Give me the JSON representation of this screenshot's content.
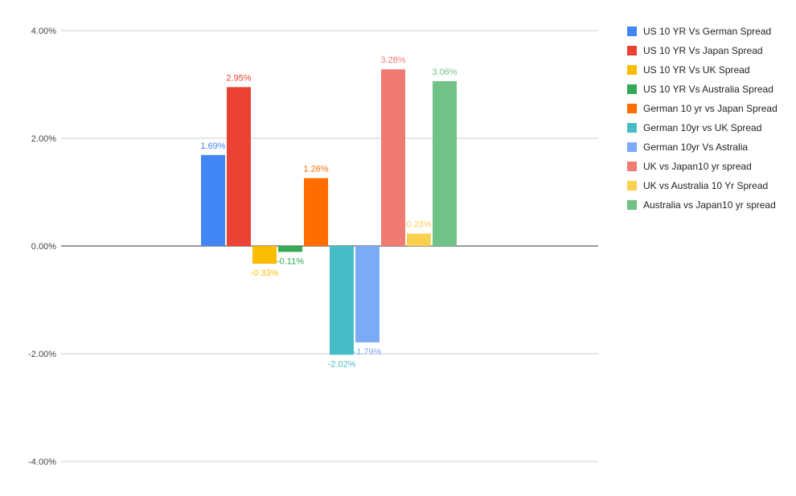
{
  "chart_data": {
    "type": "bar",
    "title": "",
    "xlabel": "",
    "ylabel": "",
    "ylim": [
      -4,
      4
    ],
    "y_ticks": [
      4,
      2,
      0,
      -2,
      -4
    ],
    "y_tick_labels": [
      "4.00%",
      "2.00%",
      "0.00%",
      "-2.00%",
      "-4.00%"
    ],
    "grid": true,
    "legend_position": "right",
    "series": [
      {
        "name": "US 10 YR Vs German Spread",
        "value": 1.69,
        "label": "1.69%",
        "color": "#4285F4"
      },
      {
        "name": "US 10 YR Vs Japan Spread",
        "value": 2.95,
        "label": "2.95%",
        "color": "#EA4335"
      },
      {
        "name": "US 10 YR Vs UK Spread",
        "value": -0.33,
        "label": "-0.33%",
        "color": "#FBBC04"
      },
      {
        "name": "US 10 YR Vs Australia Spread",
        "value": -0.11,
        "label": "-0.11%",
        "color": "#34A853"
      },
      {
        "name": "German 10 yr vs Japan Spread",
        "value": 1.26,
        "label": "1.26%",
        "color": "#FF6D01"
      },
      {
        "name": "German 10yr vs UK Spread",
        "value": -2.02,
        "label": "-2.02%",
        "color": "#46BDC6"
      },
      {
        "name": "German 10yr Vs Astralia",
        "value": -1.79,
        "label": "-1.79%",
        "color": "#7BAAF7"
      },
      {
        "name": "UK vs Japan10 yr spread",
        "value": 3.28,
        "label": "3.28%",
        "color": "#F07B72"
      },
      {
        "name": "UK vs Australia 10 Yr Spread",
        "value": 0.23,
        "label": "0.23%",
        "color": "#FCD04F"
      },
      {
        "name": "Australia vs Japan10 yr spread",
        "value": 3.06,
        "label": "3.06%",
        "color": "#71C287"
      }
    ]
  }
}
